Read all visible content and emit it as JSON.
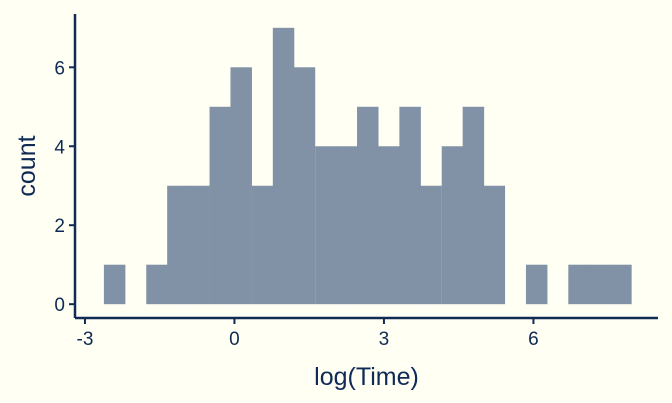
{
  "chart_data": {
    "type": "bar",
    "xlabel": "log(Time)",
    "ylabel": "count",
    "xlim": [
      -3.2,
      8.5
    ],
    "ylim": [
      -0.35,
      7.35
    ],
    "x_ticks": [
      -3,
      0,
      3,
      6
    ],
    "x_tick_labels": [
      "-3",
      "0",
      "3",
      "6"
    ],
    "y_ticks": [
      0,
      2,
      4,
      6
    ],
    "y_tick_labels": [
      "0",
      "2",
      "4",
      "6"
    ],
    "bin_width": 0.423,
    "bins": [
      {
        "start": -2.62,
        "count": 1
      },
      {
        "start": -2.2,
        "count": 0
      },
      {
        "start": -1.77,
        "count": 1
      },
      {
        "start": -1.35,
        "count": 3
      },
      {
        "start": -0.93,
        "count": 3
      },
      {
        "start": -0.5,
        "count": 5
      },
      {
        "start": -0.08,
        "count": 6
      },
      {
        "start": 0.35,
        "count": 3
      },
      {
        "start": 0.77,
        "count": 7
      },
      {
        "start": 1.19,
        "count": 6
      },
      {
        "start": 1.62,
        "count": 4
      },
      {
        "start": 2.04,
        "count": 4
      },
      {
        "start": 2.46,
        "count": 5
      },
      {
        "start": 2.89,
        "count": 4
      },
      {
        "start": 3.31,
        "count": 5
      },
      {
        "start": 3.73,
        "count": 3
      },
      {
        "start": 4.16,
        "count": 4
      },
      {
        "start": 4.58,
        "count": 5
      },
      {
        "start": 5.0,
        "count": 3
      },
      {
        "start": 5.43,
        "count": 0
      },
      {
        "start": 5.85,
        "count": 1
      },
      {
        "start": 6.27,
        "count": 0
      },
      {
        "start": 6.7,
        "count": 1
      },
      {
        "start": 7.12,
        "count": 1
      },
      {
        "start": 7.54,
        "count": 1
      }
    ],
    "colors": {
      "bar": "#8191a6",
      "axis": "#0f2a55",
      "text": "#0f2a55",
      "background": "#fffff3"
    }
  }
}
